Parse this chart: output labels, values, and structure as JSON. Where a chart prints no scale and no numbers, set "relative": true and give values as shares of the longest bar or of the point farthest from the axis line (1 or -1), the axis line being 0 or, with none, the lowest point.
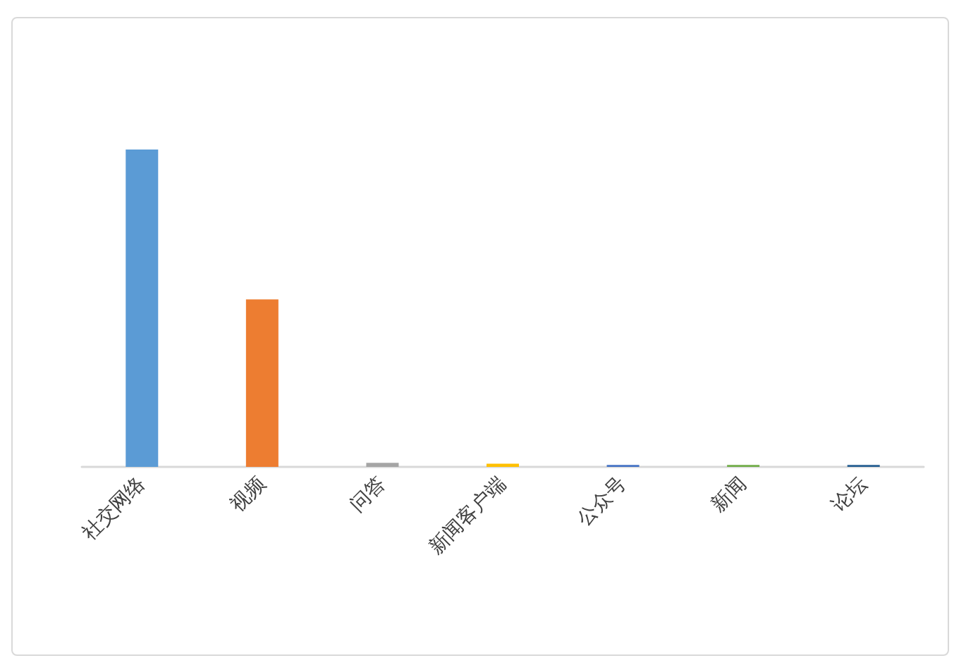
{
  "chart_data": {
    "type": "bar",
    "relative": true,
    "categories": [
      "社交网络",
      "视频",
      "问答",
      "新闻客户端",
      "公众号",
      "新闻",
      "论坛"
    ],
    "values": [
      1,
      0.528,
      0.013,
      0.01,
      0.006,
      0.006,
      0.006
    ],
    "colors": [
      "#5b9bd5",
      "#ed7d31",
      "#a5a5a5",
      "#ffc000",
      "#4472c4",
      "#70ad47",
      "#255e91"
    ],
    "grid": false
  }
}
